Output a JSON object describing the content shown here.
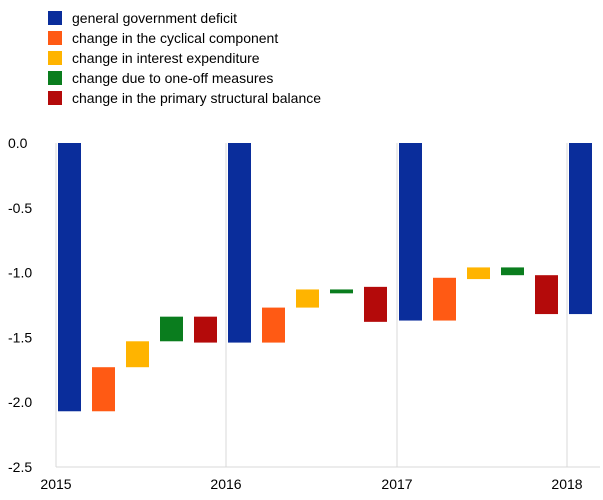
{
  "chart_data": {
    "type": "bar",
    "subtype": "waterfall",
    "legend": [
      {
        "name": "general government deficit",
        "color": "#0a2d9b"
      },
      {
        "name": "change in the cyclical component",
        "color": "#ff5a14"
      },
      {
        "name": "change in interest expenditure",
        "color": "#ffb400"
      },
      {
        "name": "change due to one-off measures",
        "color": "#0a7d1e"
      },
      {
        "name": "change in the primary structural balance",
        "color": "#b40a0a"
      }
    ],
    "legend_position": "top-left",
    "x_ticks": [
      "2015",
      "2016",
      "2017",
      "2018"
    ],
    "ylim": [
      -2.5,
      0.0
    ],
    "y_ticks": [
      "0.0",
      "-0.5",
      "-1.0",
      "-1.5",
      "-2.0",
      "-2.5"
    ],
    "y_tick_values": [
      0.0,
      -0.5,
      -1.0,
      -1.5,
      -2.0,
      -2.5
    ],
    "grid": "vertical at year ticks",
    "bars": [
      {
        "category": "2015",
        "series": "general government deficit",
        "from": 0.0,
        "to": -2.07
      },
      {
        "category": "2015-2016",
        "series": "change in the cyclical component",
        "from": -2.07,
        "to": -1.73
      },
      {
        "category": "2015-2016",
        "series": "change in interest expenditure",
        "from": -1.73,
        "to": -1.53
      },
      {
        "category": "2015-2016",
        "series": "change due to one-off measures",
        "from": -1.53,
        "to": -1.34
      },
      {
        "category": "2015-2016",
        "series": "change in the primary structural balance",
        "from": -1.34,
        "to": -1.54
      },
      {
        "category": "2016",
        "series": "general government deficit",
        "from": 0.0,
        "to": -1.54
      },
      {
        "category": "2016-2017",
        "series": "change in the cyclical component",
        "from": -1.54,
        "to": -1.27
      },
      {
        "category": "2016-2017",
        "series": "change in interest expenditure",
        "from": -1.27,
        "to": -1.13
      },
      {
        "category": "2016-2017",
        "series": "change due to one-off measures",
        "from": -1.13,
        "to": -1.16
      },
      {
        "category": "2016-2017",
        "series": "change in the primary structural balance",
        "from": -1.11,
        "to": -1.38
      },
      {
        "category": "2017",
        "series": "general government deficit",
        "from": 0.0,
        "to": -1.37
      },
      {
        "category": "2017-2018",
        "series": "change in the cyclical component",
        "from": -1.37,
        "to": -1.04
      },
      {
        "category": "2017-2018",
        "series": "change in interest expenditure",
        "from": -1.05,
        "to": -0.96
      },
      {
        "category": "2017-2018",
        "series": "change due to one-off measures",
        "from": -0.96,
        "to": -1.02
      },
      {
        "category": "2017-2018",
        "series": "change in the primary structural balance",
        "from": -1.02,
        "to": -1.32
      },
      {
        "category": "2018",
        "series": "general government deficit",
        "from": 0.0,
        "to": -1.32
      }
    ]
  }
}
